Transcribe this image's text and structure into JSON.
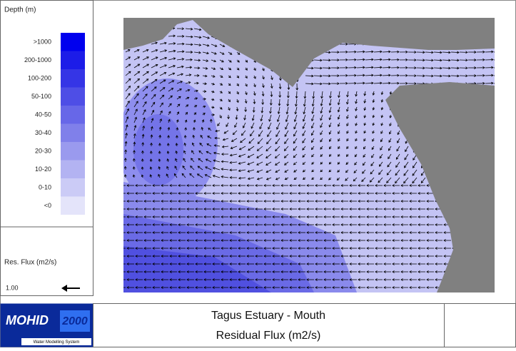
{
  "legend": {
    "title": "Depth (m)",
    "items": [
      {
        "label": ">1000",
        "color": "#0000ee"
      },
      {
        "label": "200-1000",
        "color": "#1c1ce8"
      },
      {
        "label": "100-200",
        "color": "#3535e6"
      },
      {
        "label": "50-100",
        "color": "#4e4ee6"
      },
      {
        "label": "40-50",
        "color": "#6767e8"
      },
      {
        "label": "30-40",
        "color": "#8080ea"
      },
      {
        "label": "20-30",
        "color": "#9a9aee"
      },
      {
        "label": "10-20",
        "color": "#b3b3f2"
      },
      {
        "label": "0-10",
        "color": "#cbcbf6"
      },
      {
        "label": "<0",
        "color": "#e4e4fa"
      }
    ]
  },
  "flux_legend": {
    "title": "Res. Flux (m2/s)",
    "scale": "1.00"
  },
  "logo": {
    "name": "MOHID",
    "year": "2000",
    "tagline": "Water Modelling System"
  },
  "header": {
    "title": "Tagus Estuary - Mouth",
    "subtitle": "Residual Flux (m2/s)"
  }
}
